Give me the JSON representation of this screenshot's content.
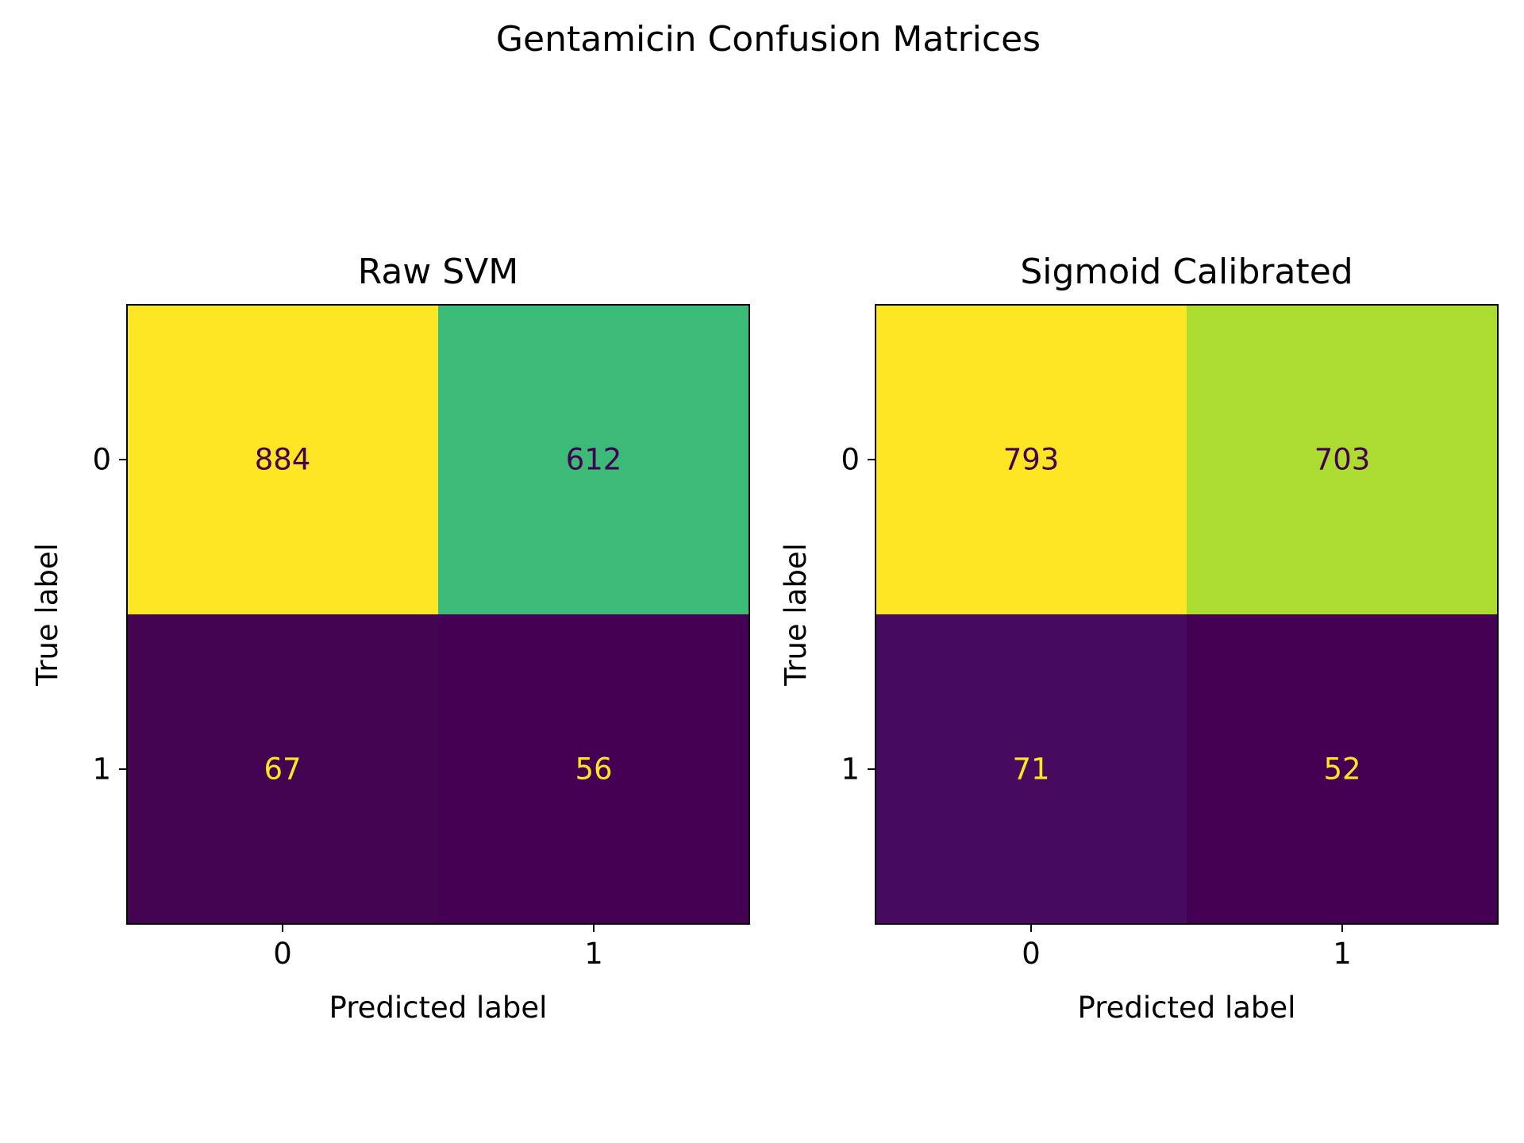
{
  "figure": {
    "title": "Gentamicin Confusion Matrices"
  },
  "chart_data": [
    {
      "type": "heatmap",
      "title": "Raw SVM",
      "xlabel": "Predicted label",
      "ylabel": "True label",
      "x_tick_labels": [
        "0",
        "1"
      ],
      "y_tick_labels": [
        "0",
        "1"
      ],
      "matrix": [
        [
          884,
          612
        ],
        [
          67,
          56
        ]
      ],
      "cell_colors": [
        [
          "#fde725",
          "#3bba78"
        ],
        [
          "#440451",
          "#440154"
        ]
      ],
      "text_colors": [
        [
          "#440154",
          "#440154"
        ],
        [
          "#fde725",
          "#fde725"
        ]
      ],
      "colormap": "viridis",
      "colorbar": false,
      "grid": false
    },
    {
      "type": "heatmap",
      "title": "Sigmoid Calibrated",
      "xlabel": "Predicted label",
      "ylabel": "True label",
      "x_tick_labels": [
        "0",
        "1"
      ],
      "y_tick_labels": [
        "0",
        "1"
      ],
      "matrix": [
        [
          793,
          703
        ],
        [
          71,
          52
        ]
      ],
      "cell_colors": [
        [
          "#fde725",
          "#addc30"
        ],
        [
          "#460b5e",
          "#440154"
        ]
      ],
      "text_colors": [
        [
          "#440154",
          "#440154"
        ],
        [
          "#fde725",
          "#fde725"
        ]
      ],
      "colormap": "viridis",
      "colorbar": false,
      "grid": false
    }
  ]
}
